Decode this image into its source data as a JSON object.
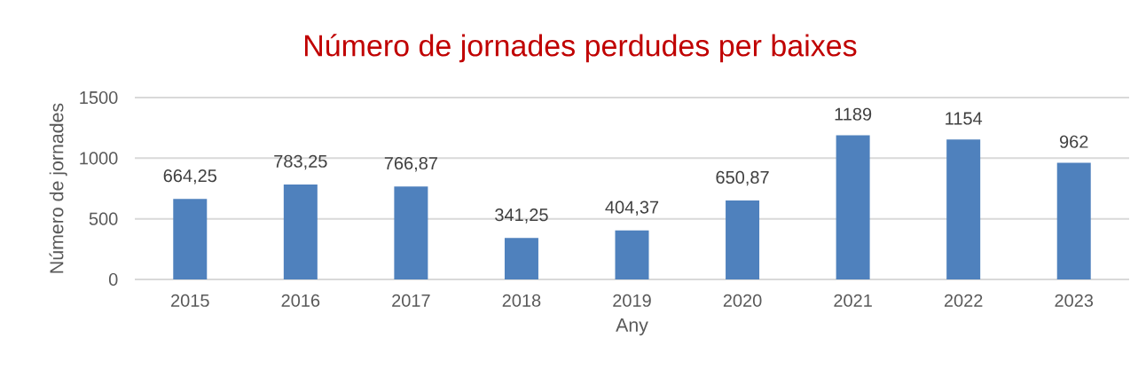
{
  "chart_data": {
    "type": "bar",
    "title": "Número de jornades perdudes per baixes",
    "xlabel": "Any",
    "ylabel": "Número de jornades",
    "categories": [
      "2015",
      "2016",
      "2017",
      "2018",
      "2019",
      "2020",
      "2021",
      "2022",
      "2023"
    ],
    "values": [
      664.25,
      783.25,
      766.87,
      341.25,
      404.37,
      650.87,
      1189,
      1154,
      962
    ],
    "value_labels": [
      "664,25",
      "783,25",
      "766,87",
      "341,25",
      "404,37",
      "650,87",
      "1189",
      "1154",
      "962"
    ],
    "color": "#4f81bd",
    "ylim": [
      0,
      1500
    ],
    "yticks": [
      0,
      500,
      1000,
      1500
    ],
    "grid": "y"
  }
}
